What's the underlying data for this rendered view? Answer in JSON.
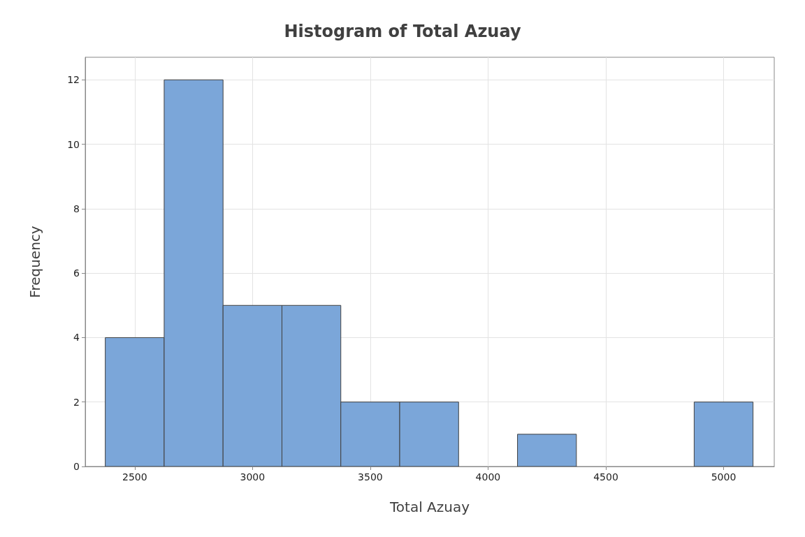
{
  "chart_data": {
    "type": "histogram",
    "title": "Histogram of Total Azuay",
    "xlabel": "Total Azuay",
    "ylabel": "Frequency",
    "bins": [
      2375,
      2625,
      2875,
      3125,
      3375,
      3625,
      3875,
      4125,
      4375,
      4625,
      4875,
      5125
    ],
    "values": [
      4,
      12,
      5,
      5,
      2,
      2,
      0,
      1,
      0,
      0,
      2
    ],
    "color": "#7ba6d9",
    "xlim": [
      2290,
      5215
    ],
    "xticks": [
      2500,
      3000,
      3500,
      4000,
      4500,
      5000
    ],
    "ylim": [
      0,
      12.7
    ],
    "yticks": [
      0,
      2,
      4,
      6,
      8,
      10,
      12
    ],
    "grid": true
  }
}
